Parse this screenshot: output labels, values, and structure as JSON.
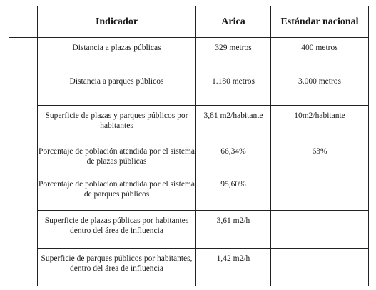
{
  "table": {
    "headers": {
      "indicador": "Indicador",
      "arica": "Arica",
      "estandar": "Estándar nacional"
    },
    "rows": [
      {
        "indicador": "Distancia a plazas públicas",
        "arica": "329 metros",
        "estandar": "400 metros"
      },
      {
        "indicador": "Distancia a parques públicos",
        "arica": "1.180 metros",
        "estandar": "3.000 metros"
      },
      {
        "indicador": "Superficie de plazas y parques públicos por habitantes",
        "arica": "3,81 m2/habitante",
        "estandar": "10m2/habitante"
      },
      {
        "indicador": "Porcentaje de población atendida por el sistema de plazas públicas",
        "arica": "66,34%",
        "estandar": "63%"
      },
      {
        "indicador": "Porcentaje de población atendida por el sistema de parques públicos",
        "arica": "95,60%",
        "estandar": ""
      },
      {
        "indicador": "Superficie de plazas públicas por habitantes dentro del área de influencia",
        "arica": "3,61 m2/h",
        "estandar": ""
      },
      {
        "indicador": "Superficie de parques públicos por habitantes, dentro del área de influencia",
        "arica": "1,42 m2/h",
        "estandar": ""
      }
    ]
  }
}
